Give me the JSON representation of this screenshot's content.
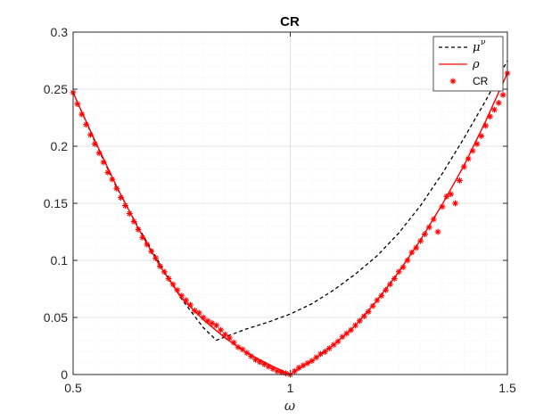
{
  "chart_data": {
    "type": "line",
    "title": "CR",
    "xlabel": "ω",
    "ylabel": "",
    "xlim": [
      0.5,
      1.5
    ],
    "ylim": [
      0,
      0.3
    ],
    "xticks": [
      "0.5",
      "1",
      "1.5"
    ],
    "yticks": [
      "0",
      "0.05",
      "0.1",
      "0.15",
      "0.2",
      "0.25",
      "0.3"
    ],
    "grid": true,
    "legend_position": "top-right",
    "series": [
      {
        "name": "μ",
        "name_superscript": "ν",
        "style": "dashed",
        "color": "#000000",
        "x": [
          0.5,
          0.55,
          0.6,
          0.65,
          0.7,
          0.75,
          0.8,
          0.83,
          0.85,
          0.9,
          0.95,
          1.0,
          1.05,
          1.1,
          1.15,
          1.2,
          1.25,
          1.3,
          1.35,
          1.4,
          1.45,
          1.5
        ],
        "y": [
          0.247,
          0.204,
          0.164,
          0.129,
          0.097,
          0.066,
          0.041,
          0.03,
          0.033,
          0.04,
          0.046,
          0.053,
          0.062,
          0.074,
          0.088,
          0.104,
          0.124,
          0.148,
          0.176,
          0.207,
          0.24,
          0.275
        ]
      },
      {
        "name": "ρ",
        "style": "solid",
        "color": "#ff0000",
        "x": [
          0.5,
          0.55,
          0.6,
          0.65,
          0.7,
          0.75,
          0.8,
          0.85,
          0.9,
          0.95,
          1.0,
          1.05,
          1.1,
          1.15,
          1.2,
          1.25,
          1.3,
          1.35,
          1.4,
          1.45,
          1.5
        ],
        "y": [
          0.247,
          0.205,
          0.165,
          0.128,
          0.095,
          0.067,
          0.048,
          0.032,
          0.019,
          0.009,
          0.0,
          0.012,
          0.026,
          0.043,
          0.065,
          0.09,
          0.118,
          0.149,
          0.183,
          0.222,
          0.264
        ]
      },
      {
        "name": "CR",
        "style": "marker",
        "marker": "asterisk",
        "color": "#ff0000",
        "x": [
          0.5,
          0.51,
          0.52,
          0.53,
          0.54,
          0.55,
          0.56,
          0.57,
          0.58,
          0.59,
          0.6,
          0.61,
          0.62,
          0.63,
          0.64,
          0.65,
          0.66,
          0.67,
          0.68,
          0.69,
          0.7,
          0.71,
          0.72,
          0.73,
          0.74,
          0.75,
          0.76,
          0.77,
          0.78,
          0.79,
          0.8,
          0.81,
          0.82,
          0.83,
          0.84,
          0.85,
          0.86,
          0.87,
          0.88,
          0.89,
          0.9,
          0.91,
          0.92,
          0.93,
          0.94,
          0.95,
          0.96,
          0.97,
          0.98,
          0.99,
          1.0,
          1.01,
          1.02,
          1.03,
          1.04,
          1.05,
          1.06,
          1.07,
          1.08,
          1.09,
          1.1,
          1.11,
          1.12,
          1.13,
          1.14,
          1.15,
          1.16,
          1.17,
          1.18,
          1.19,
          1.2,
          1.21,
          1.22,
          1.23,
          1.24,
          1.25,
          1.26,
          1.27,
          1.28,
          1.29,
          1.3,
          1.31,
          1.32,
          1.33,
          1.34,
          1.35,
          1.36,
          1.37,
          1.38,
          1.39,
          1.4,
          1.41,
          1.42,
          1.43,
          1.44,
          1.45,
          1.46,
          1.47,
          1.48,
          1.49,
          1.5
        ],
        "y": [
          0.247,
          0.237,
          0.228,
          0.219,
          0.21,
          0.202,
          0.194,
          0.186,
          0.177,
          0.171,
          0.163,
          0.155,
          0.148,
          0.141,
          0.134,
          0.127,
          0.12,
          0.114,
          0.108,
          0.102,
          0.095,
          0.09,
          0.084,
          0.079,
          0.074,
          0.069,
          0.065,
          0.061,
          0.056,
          0.054,
          0.05,
          0.047,
          0.045,
          0.043,
          0.039,
          0.035,
          0.032,
          0.028,
          0.024,
          0.022,
          0.019,
          0.016,
          0.013,
          0.011,
          0.009,
          0.007,
          0.005,
          0.003,
          0.002,
          0.001,
          0.0,
          0.003,
          0.006,
          0.008,
          0.01,
          0.012,
          0.015,
          0.018,
          0.02,
          0.023,
          0.026,
          0.029,
          0.033,
          0.036,
          0.039,
          0.043,
          0.047,
          0.051,
          0.055,
          0.06,
          0.065,
          0.069,
          0.074,
          0.079,
          0.084,
          0.09,
          0.094,
          0.1,
          0.107,
          0.111,
          0.117,
          0.123,
          0.129,
          0.136,
          0.125,
          0.147,
          0.156,
          0.158,
          0.15,
          0.17,
          0.182,
          0.189,
          0.196,
          0.202,
          0.209,
          0.218,
          0.226,
          0.232,
          0.238,
          0.245,
          0.264
        ]
      }
    ]
  }
}
